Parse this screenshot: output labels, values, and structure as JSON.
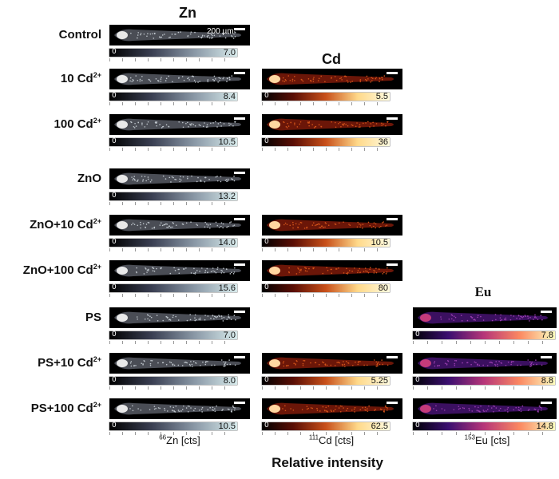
{
  "columns": {
    "zn": {
      "title": "Zn",
      "axis_label_iso": "66",
      "axis_label_el": "Zn [cts]"
    },
    "cd": {
      "title": "Cd",
      "axis_label_iso": "111",
      "axis_label_el": "Cd [cts]"
    },
    "eu": {
      "title": "Eu",
      "axis_label_iso": "153",
      "axis_label_el": "Eu [cts]"
    }
  },
  "scale_bar": "200 µm",
  "rows": [
    {
      "label": "Control",
      "ion": "",
      "zn_max": "7.0",
      "cd_max": null,
      "eu_max": null
    },
    {
      "label": "10 Cd",
      "ion": "2+",
      "zn_max": "8.4",
      "cd_max": "5.5",
      "eu_max": null
    },
    {
      "label": "100 Cd",
      "ion": "2+",
      "zn_max": "10.5",
      "cd_max": "36",
      "eu_max": null
    },
    {
      "label": "ZnO",
      "ion": "",
      "zn_max": "13.2",
      "cd_max": null,
      "eu_max": null
    },
    {
      "label": "ZnO+10 Cd",
      "ion": "2+",
      "zn_max": "14.0",
      "cd_max": "10.5",
      "eu_max": null
    },
    {
      "label": "ZnO+100 Cd",
      "ion": "2+",
      "zn_max": "15.6",
      "cd_max": "80",
      "eu_max": null
    },
    {
      "label": "PS",
      "ion": "",
      "zn_max": "7.0",
      "cd_max": null,
      "eu_max": "7.8"
    },
    {
      "label": "PS+10 Cd",
      "ion": "2+",
      "zn_max": "8.0",
      "cd_max": "5.25",
      "eu_max": "8.8"
    },
    {
      "label": "PS+100 Cd",
      "ion": "2+",
      "zn_max": "10.5",
      "cd_max": "62.5",
      "eu_max": "14.8"
    }
  ],
  "zero_label": "0",
  "footer": "Relative intensity",
  "colors": {
    "zn_gradient": [
      "#000000",
      "#3a3f52",
      "#8a98a6",
      "#d8ebec"
    ],
    "cd_gradient": [
      "#000000",
      "#5c0f05",
      "#c8501a",
      "#ffd98a",
      "#fffbe0"
    ],
    "eu_gradient": [
      "#000004",
      "#3b0f70",
      "#b63679",
      "#fb8861",
      "#fcfdbf"
    ]
  }
}
